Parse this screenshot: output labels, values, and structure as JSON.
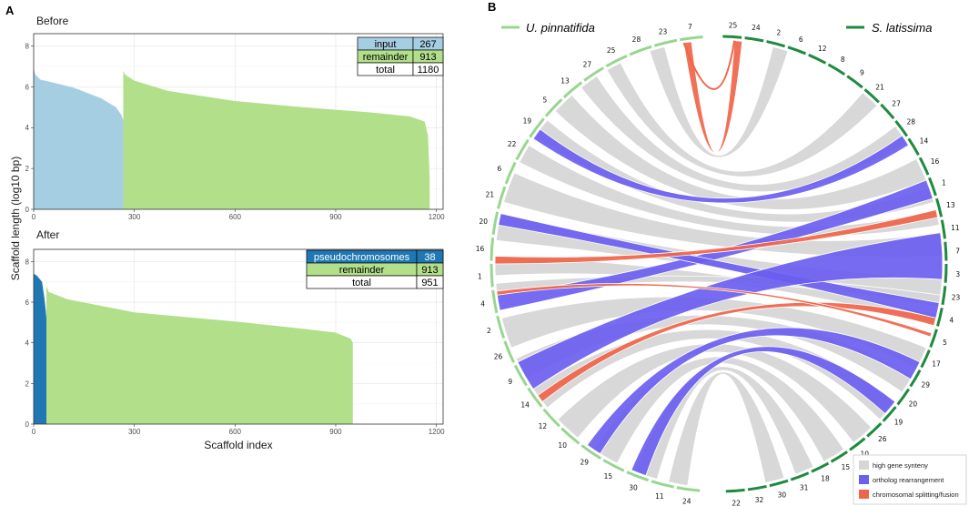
{
  "colors": {
    "before_input": "#a6cee3",
    "after_pseudo": "#1f78b4",
    "remainder": "#b2df8a",
    "chr_left": "#98d690",
    "chr_right": "#1e8a40",
    "synteny": "#d6d6d6",
    "rearrangement": "#6b5ef0",
    "splitting": "#f0654a"
  },
  "panel_labels": {
    "a": "A",
    "b": "B"
  },
  "chart_data": [
    {
      "type": "area",
      "panel": "A",
      "title": "Before",
      "xlabel": "Scaffold index",
      "ylabel": "Scaffold length (log10 bp)",
      "xlim": [
        0,
        1220
      ],
      "ylim": [
        0,
        8.6
      ],
      "xticks": [
        "0",
        "300",
        "600",
        "900",
        "1200"
      ],
      "yticks": [
        "0",
        "2",
        "4",
        "6",
        "8"
      ],
      "series": [
        {
          "name": "input",
          "points": [
            [
              0,
              6.9
            ],
            [
              5,
              6.6
            ],
            [
              20,
              6.35
            ],
            [
              60,
              6.2
            ],
            [
              120,
              5.95
            ],
            [
              200,
              5.45
            ],
            [
              245,
              5.0
            ],
            [
              262,
              4.6
            ],
            [
              267,
              4.35
            ]
          ]
        },
        {
          "name": "remainder",
          "points": [
            [
              267,
              6.8
            ],
            [
              272,
              6.6
            ],
            [
              300,
              6.3
            ],
            [
              400,
              5.8
            ],
            [
              600,
              5.3
            ],
            [
              800,
              5.0
            ],
            [
              1000,
              4.75
            ],
            [
              1120,
              4.55
            ],
            [
              1165,
              4.3
            ],
            [
              1175,
              3.6
            ],
            [
              1180,
              1.5
            ]
          ]
        }
      ],
      "legend_table": [
        {
          "label": "input",
          "value": "267"
        },
        {
          "label": "remainder",
          "value": "913"
        },
        {
          "label": "total",
          "value": "1180"
        }
      ]
    },
    {
      "type": "area",
      "panel": "A",
      "title": "After",
      "xlabel": "Scaffold index",
      "ylabel": "Scaffold length (log10 bp)",
      "xlim": [
        0,
        1220
      ],
      "ylim": [
        0,
        8.6
      ],
      "xticks": [
        "0",
        "300",
        "600",
        "900",
        "1200"
      ],
      "yticks": [
        "0",
        "2",
        "4",
        "6",
        "8"
      ],
      "series": [
        {
          "name": "pseudochromosomes",
          "points": [
            [
              0,
              7.4
            ],
            [
              10,
              7.3
            ],
            [
              25,
              7.0
            ],
            [
              32,
              6.2
            ],
            [
              36,
              5.6
            ],
            [
              38,
              5.2
            ]
          ]
        },
        {
          "name": "remainder",
          "points": [
            [
              38,
              6.8
            ],
            [
              45,
              6.5
            ],
            [
              100,
              6.15
            ],
            [
              300,
              5.5
            ],
            [
              600,
              5.05
            ],
            [
              800,
              4.7
            ],
            [
              900,
              4.5
            ],
            [
              945,
              4.2
            ],
            [
              951,
              4.0
            ]
          ]
        }
      ],
      "legend_table": [
        {
          "label": "pseudochromosomes",
          "value": "38"
        },
        {
          "label": "remainder",
          "value": "913"
        },
        {
          "label": "total",
          "value": "951"
        }
      ]
    },
    {
      "type": "chord",
      "panel": "B",
      "genomes": [
        {
          "name": "U. pinnatifida",
          "side": "left"
        },
        {
          "name": "S. latissima",
          "side": "right"
        }
      ],
      "left_chromosomes": [
        "7",
        "23",
        "28",
        "25",
        "27",
        "13",
        "5",
        "19",
        "22",
        "6",
        "21",
        "20",
        "16",
        "1",
        "4",
        "2",
        "26",
        "9",
        "14",
        "12",
        "10",
        "29",
        "15",
        "30",
        "11",
        "24"
      ],
      "right_chromosomes": [
        "25",
        "24",
        "2",
        "6",
        "12",
        "8",
        "9",
        "21",
        "27",
        "28",
        "14",
        "16",
        "1",
        "13",
        "11",
        "7",
        "3",
        "23",
        "4",
        "5",
        "17",
        "29",
        "20",
        "19",
        "26",
        "10",
        "15",
        "18",
        "31",
        "30",
        "32",
        "22"
      ],
      "legend": [
        {
          "label": "high gene synteny",
          "key": "synteny"
        },
        {
          "label": "ortholog rearrangement",
          "key": "rearrangement"
        },
        {
          "label": "chromosomal splitting/fusion",
          "key": "splitting"
        }
      ]
    }
  ]
}
